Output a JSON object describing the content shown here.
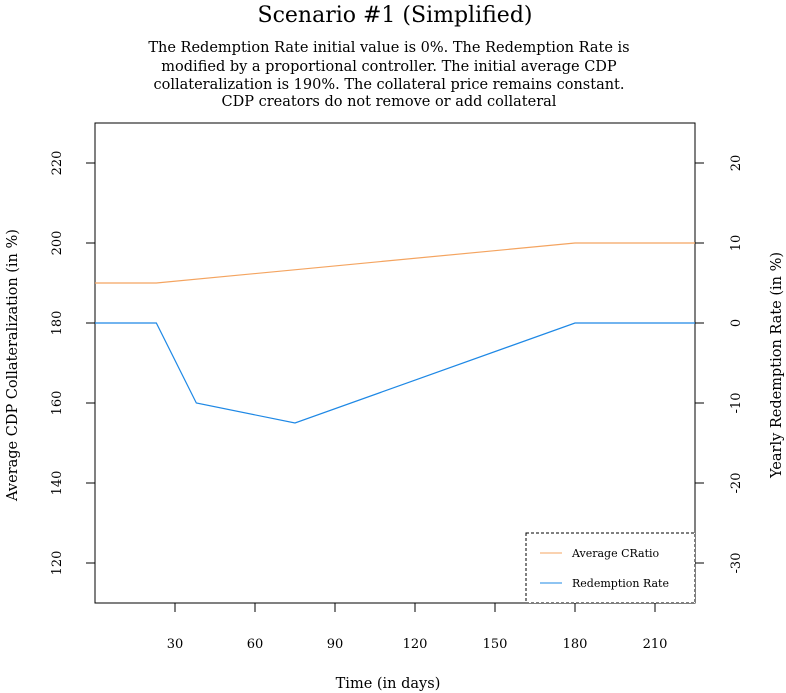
{
  "chart_data": {
    "type": "line",
    "title": "Scenario #1 (Simplified)",
    "subtitle_lines": [
      "The Redemption Rate initial value is 0%. The Redemption Rate is",
      "modified by a proportional controller. The initial average CDP",
      "collateralization is 190%. The collateral price remains constant.",
      "CDP creators do not remove or add collateral"
    ],
    "xlabel": "Time (in days)",
    "ylabel_left": "Average CDP Collateralization (in %)",
    "ylabel_right": "Yearly Redemption Rate (in %)",
    "xlim": [
      0,
      225
    ],
    "ylim_left": [
      110,
      230
    ],
    "ylim_right": [
      -35,
      25
    ],
    "x_ticks": [
      30,
      60,
      90,
      120,
      150,
      180,
      210
    ],
    "y_ticks_left": [
      120,
      140,
      160,
      180,
      200,
      220
    ],
    "y_ticks_right": [
      -30,
      -20,
      -10,
      0,
      10,
      20
    ],
    "grid": false,
    "legend_position": "bottom-right",
    "series": [
      {
        "name": "Average CRatio",
        "axis": "left",
        "color": "#f4a460",
        "x": [
          0,
          23,
          180,
          225
        ],
        "y": [
          190,
          190,
          200,
          200
        ]
      },
      {
        "name": "Redemption Rate",
        "axis": "right",
        "color": "#1e88e5",
        "x": [
          0,
          23,
          38,
          75,
          180,
          225
        ],
        "y": [
          0,
          0,
          -10,
          -12.5,
          0,
          0
        ]
      }
    ]
  }
}
